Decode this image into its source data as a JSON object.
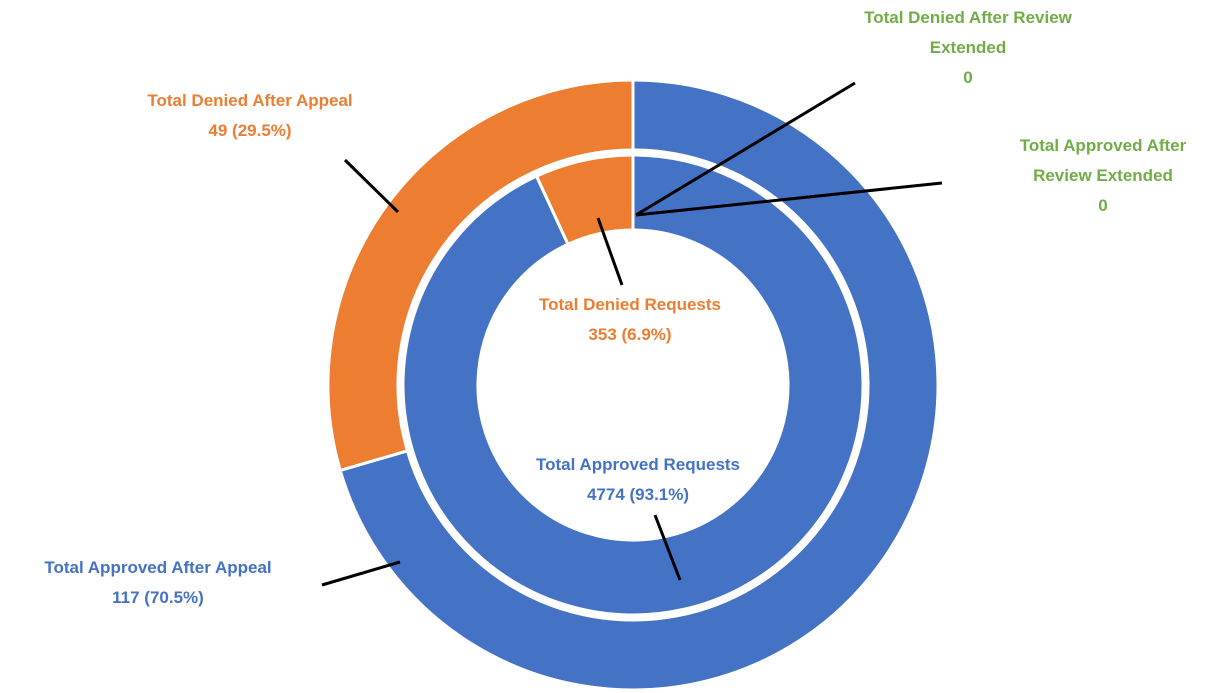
{
  "chart_data": {
    "type": "donut",
    "rings": [
      {
        "categories": [
          "Total Approved Requests",
          "Total Denied Requests"
        ],
        "values": [
          4774,
          353
        ],
        "value_labels": [
          "4774 (93.1%)",
          "353 (6.9%)"
        ],
        "colors": [
          "#4472c4",
          "#ed7d31"
        ]
      },
      {
        "categories": [
          "Total Approved After Appeal",
          "Total Denied After Appeal",
          "Total Denied After Review Extended",
          "Total Approved After Review Extended"
        ],
        "values": [
          117,
          49,
          0,
          0
        ],
        "value_labels": [
          "117 (70.5%)",
          "49 (29.5%)",
          "0",
          "0"
        ],
        "colors": [
          "#4472c4",
          "#ed7d31",
          "#70ad47",
          "#70ad47"
        ]
      }
    ]
  }
}
